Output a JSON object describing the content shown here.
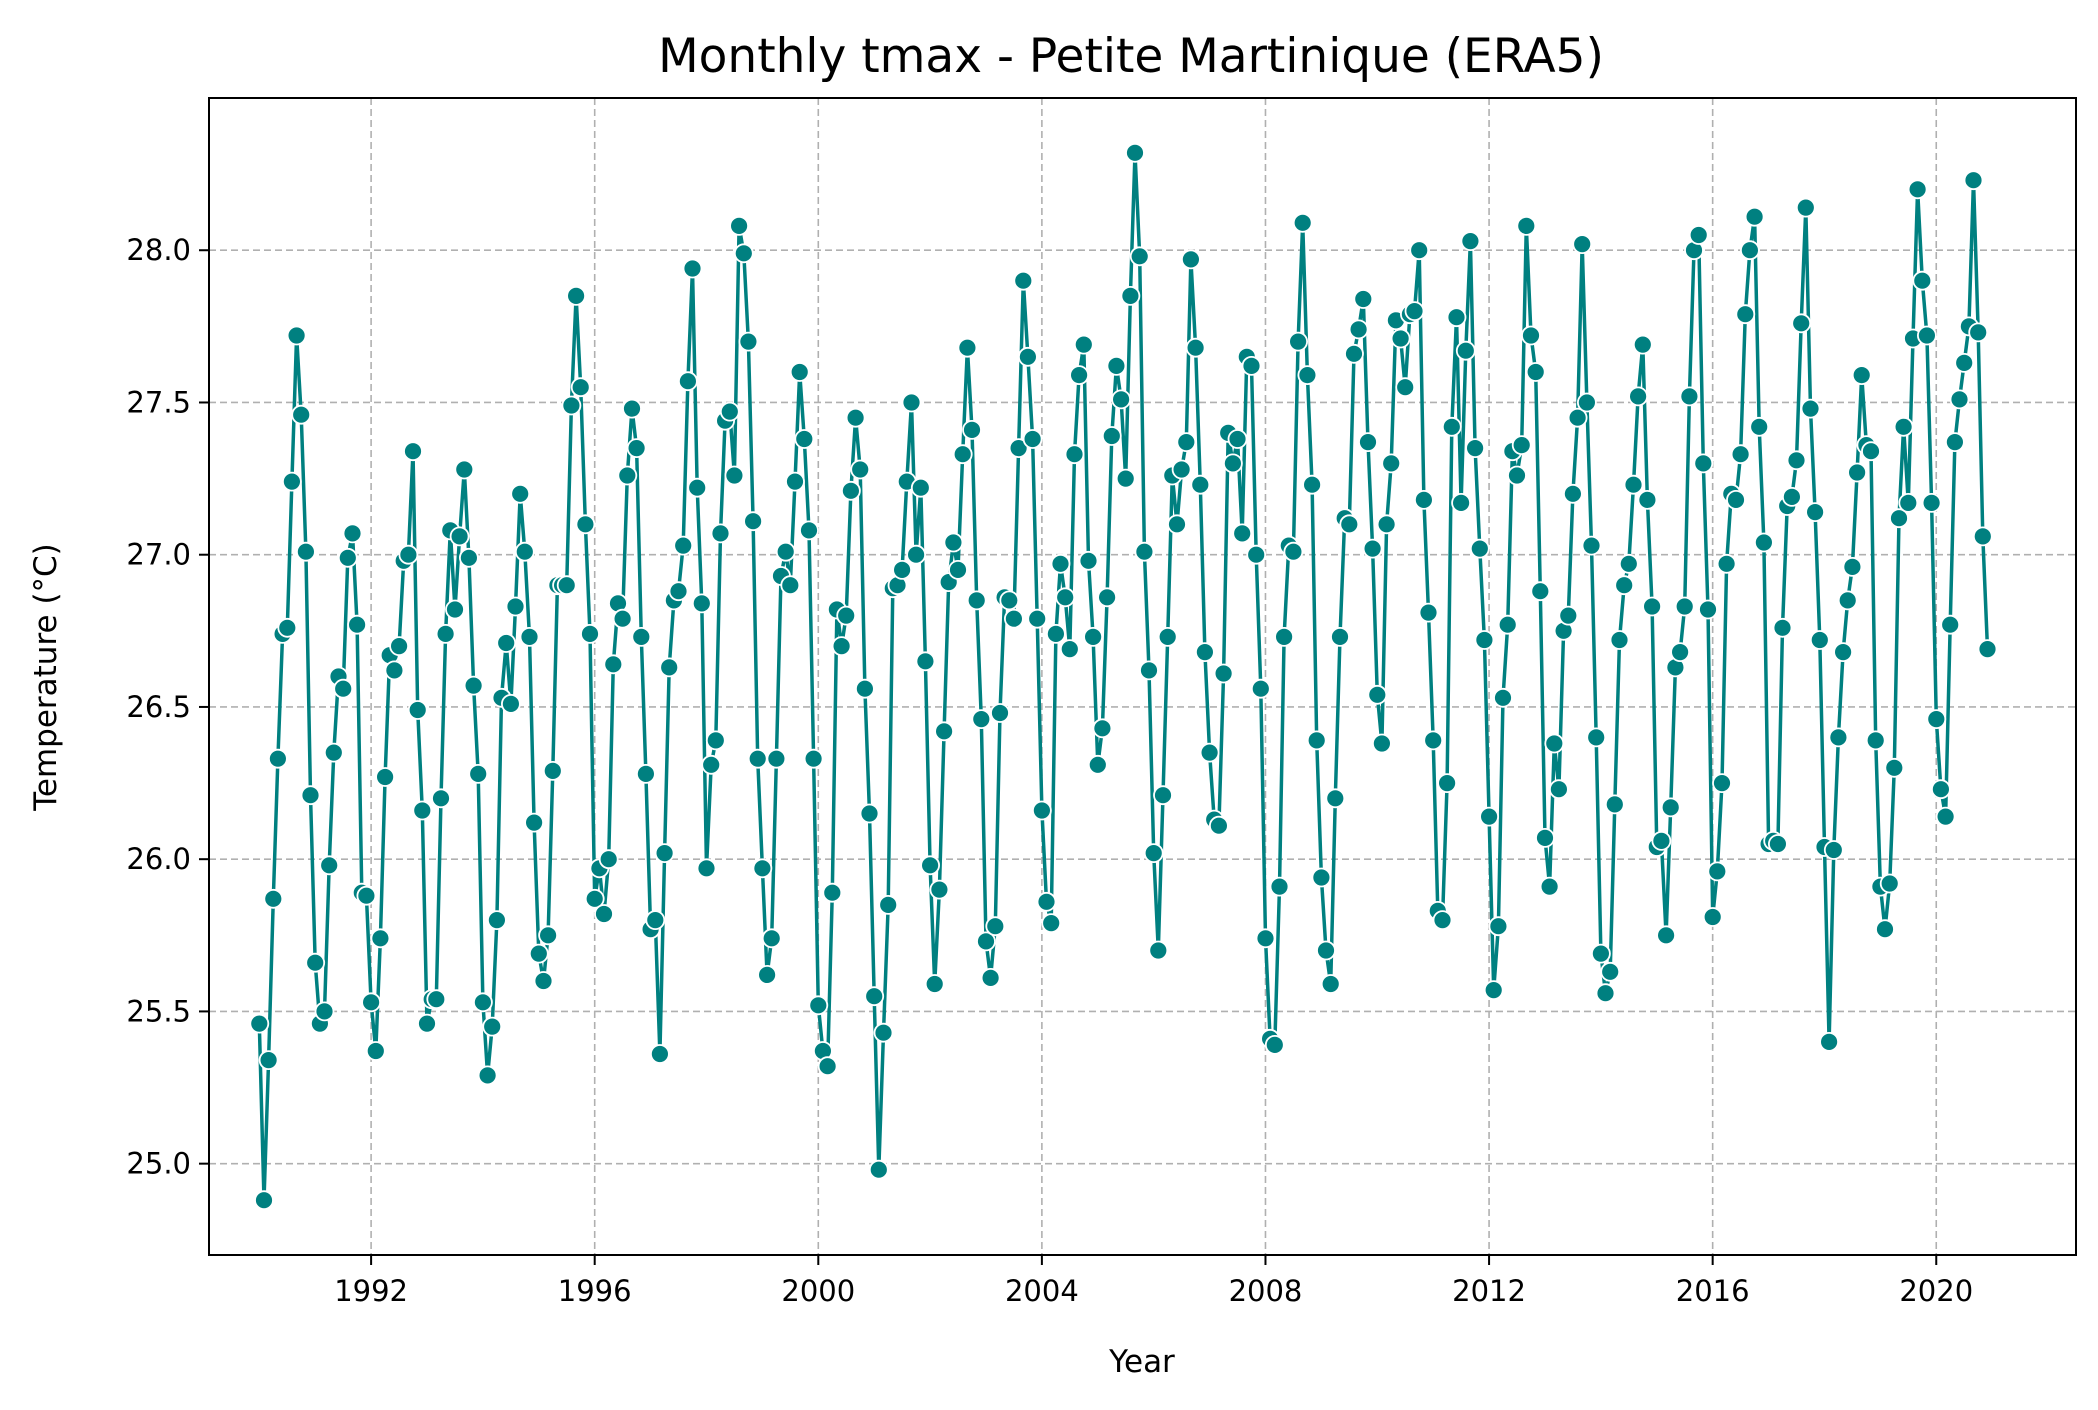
{
  "chart_data": {
    "type": "line",
    "title": "Monthly tmax - Petite Martinique (ERA5)",
    "xlabel": "Year",
    "ylabel": "Temperature (°C)",
    "xlim": [
      1989.1,
      2022.5
    ],
    "ylim": [
      24.7,
      28.5
    ],
    "x_ticks": [
      "1992",
      "1996",
      "2000",
      "2004",
      "2008",
      "2012",
      "2016",
      "2020"
    ],
    "y_ticks": [
      "25.0",
      "25.5",
      "26.0",
      "26.5",
      "27.0",
      "27.5",
      "28.0"
    ],
    "grid": true,
    "line_color": "#008080",
    "marker_edge_color": "#ffffff",
    "series": [
      {
        "x_start": "1990-01",
        "frequency": "monthly",
        "values": [
          25.46,
          24.88,
          25.34,
          25.87,
          26.33,
          26.74,
          26.76,
          27.24,
          27.72,
          27.46,
          27.01,
          26.21,
          25.66,
          25.46,
          25.5,
          25.98,
          26.35,
          26.6,
          26.56,
          26.99,
          27.07,
          26.77,
          25.89,
          25.88,
          25.53,
          25.37,
          25.74,
          26.27,
          26.67,
          26.62,
          26.7,
          26.98,
          27.0,
          27.34,
          26.49,
          26.16,
          25.46,
          25.54,
          25.54,
          26.2,
          26.74,
          27.08,
          26.82,
          27.06,
          27.28,
          26.99,
          26.57,
          26.28,
          25.53,
          25.29,
          25.45,
          25.8,
          26.53,
          26.71,
          26.51,
          26.83,
          27.2,
          27.01,
          26.73,
          26.12,
          25.69,
          25.6,
          25.75,
          26.29,
          26.9,
          26.9,
          26.9,
          27.49,
          27.85,
          27.55,
          27.1,
          26.74,
          25.87,
          25.97,
          25.82,
          26.0,
          26.64,
          26.84,
          26.79,
          27.26,
          27.48,
          27.35,
          26.73,
          26.28,
          25.77,
          25.8,
          25.36,
          26.02,
          26.63,
          26.85,
          26.88,
          27.03,
          27.57,
          27.94,
          27.22,
          26.84,
          25.97,
          26.31,
          26.39,
          27.07,
          27.44,
          27.47,
          27.26,
          28.08,
          27.99,
          27.7,
          27.11,
          26.33,
          25.97,
          25.62,
          25.74,
          26.33,
          26.93,
          27.01,
          26.9,
          27.24,
          27.6,
          27.38,
          27.08,
          26.33,
          25.52,
          25.37,
          25.32,
          25.89,
          26.82,
          26.7,
          26.8,
          27.21,
          27.45,
          27.28,
          26.56,
          26.15,
          25.55,
          24.98,
          25.43,
          25.85,
          26.89,
          26.9,
          26.95,
          27.24,
          27.5,
          27.0,
          27.22,
          26.65,
          25.98,
          25.59,
          25.9,
          26.42,
          26.91,
          27.04,
          26.95,
          27.33,
          27.68,
          27.41,
          26.85,
          26.46,
          25.73,
          25.61,
          25.78,
          26.48,
          26.86,
          26.85,
          26.79,
          27.35,
          27.9,
          27.65,
          27.38,
          26.79,
          26.16,
          25.86,
          25.79,
          26.74,
          26.97,
          26.86,
          26.69,
          27.33,
          27.59,
          27.69,
          26.98,
          26.73,
          26.31,
          26.43,
          26.86,
          27.39,
          27.62,
          27.51,
          27.25,
          27.85,
          28.32,
          27.98,
          27.01,
          26.62,
          26.02,
          25.7,
          26.21,
          26.73,
          27.26,
          27.1,
          27.28,
          27.37,
          27.97,
          27.68,
          27.23,
          26.68,
          26.35,
          26.13,
          26.11,
          26.61,
          27.4,
          27.3,
          27.38,
          27.07,
          27.65,
          27.62,
          27.0,
          26.56,
          25.74,
          25.41,
          25.39,
          25.91,
          26.73,
          27.03,
          27.01,
          27.7,
          28.09,
          27.59,
          27.23,
          26.39,
          25.94,
          25.7,
          25.59,
          26.2,
          26.73,
          27.12,
          27.1,
          27.66,
          27.74,
          27.84,
          27.37,
          27.02,
          26.54,
          26.38,
          27.1,
          27.3,
          27.77,
          27.71,
          27.55,
          27.79,
          27.8,
          28.0,
          27.18,
          26.81,
          26.39,
          25.83,
          25.8,
          26.25,
          27.42,
          27.78,
          27.17,
          27.67,
          28.03,
          27.35,
          27.02,
          26.72,
          26.14,
          25.57,
          25.78,
          26.53,
          26.77,
          27.34,
          27.26,
          27.36,
          28.08,
          27.72,
          27.6,
          26.88,
          26.07,
          25.91,
          26.38,
          26.23,
          26.75,
          26.8,
          27.2,
          27.45,
          28.02,
          27.5,
          27.03,
          26.4,
          25.69,
          25.56,
          25.63,
          26.18,
          26.72,
          26.9,
          26.97,
          27.23,
          27.52,
          27.69,
          27.18,
          26.83,
          26.04,
          26.06,
          25.75,
          26.17,
          26.63,
          26.68,
          26.83,
          27.52,
          28.0,
          28.05,
          27.3,
          26.82,
          25.81,
          25.96,
          26.25,
          26.97,
          27.2,
          27.18,
          27.33,
          27.79,
          28.0,
          28.11,
          27.42,
          27.04,
          26.05,
          26.06,
          26.05,
          26.76,
          27.16,
          27.19,
          27.31,
          27.76,
          28.14,
          27.48,
          27.14,
          26.72,
          26.04,
          25.4,
          26.03,
          26.4,
          26.68,
          26.85,
          26.96,
          27.27,
          27.59,
          27.36,
          27.34,
          26.39,
          25.91,
          25.77,
          25.92,
          26.3,
          27.12,
          27.42,
          27.17,
          27.71,
          28.2,
          27.9,
          27.72,
          27.17,
          26.46,
          26.23,
          26.14,
          26.77,
          27.37,
          27.51,
          27.63,
          27.75,
          28.23,
          27.73,
          27.06,
          26.69
        ]
      }
    ]
  }
}
